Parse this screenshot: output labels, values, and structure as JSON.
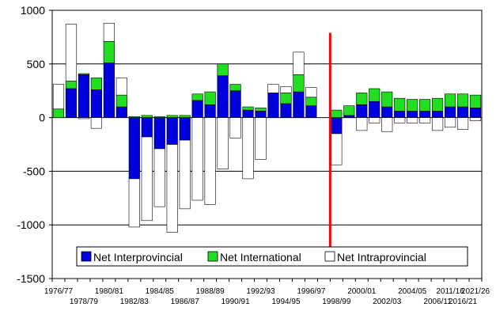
{
  "colors": {
    "interprovincial": "#0000dd",
    "international": "#22dd22",
    "intraprovincial": "#ffffff",
    "marker": "#ff0000",
    "grid": "#000000"
  },
  "chart_data": {
    "type": "bar",
    "stacked": true,
    "ylim": [
      -1500,
      1000
    ],
    "yticks": [
      1000,
      500,
      0,
      -500,
      -1000,
      -1500
    ],
    "ytick_labels": [
      "1000",
      "500",
      "0",
      "-500",
      "-1000",
      "-1500"
    ],
    "grid": "horizontal",
    "legend_position": "bottom-inside",
    "title": "",
    "xlabel": "",
    "ylabel": "",
    "x_range": [
      "1976/77",
      "2021/26"
    ],
    "x_tick_labels_upper": [
      "1976/77",
      "1980/81",
      "1984/85",
      "1988/89",
      "1992/93",
      "1996/97",
      "2000/01",
      "2004/05",
      "2011/16",
      "2021/26"
    ],
    "x_tick_labels_lower": [
      "1978/79",
      "1982/83",
      "1986/87",
      "1990/91",
      "1994/95",
      "1998/99",
      "2002/03",
      "2006/11",
      "2016/21"
    ],
    "vertical_marker": {
      "between": [
        "1997/98",
        "1998/99"
      ],
      "color": "#ff0000"
    },
    "categories": [
      "1976/77",
      "1977/78",
      "1978/79",
      "1979/80",
      "1980/81",
      "1981/82",
      "1982/83",
      "1983/84",
      "1984/85",
      "1985/86",
      "1986/87",
      "1987/88",
      "1988/89",
      "1989/90",
      "1990/91",
      "1991/92",
      "1992/93",
      "1993/94",
      "1994/95",
      "1995/96",
      "1996/97",
      "1997/98",
      "1998/99",
      "1999/00",
      "2000/01",
      "2001/02",
      "2002/03",
      "2003/04",
      "2004/05",
      "2005/06",
      "2006/11",
      "2011/16",
      "2016/21",
      "2021/26"
    ],
    "series": [
      {
        "name": "Net Interprovincial",
        "values": [
          0,
          270,
          400,
          260,
          510,
          100,
          -570,
          -180,
          -290,
          -250,
          -210,
          160,
          120,
          390,
          250,
          70,
          60,
          230,
          130,
          240,
          110,
          null,
          -150,
          20,
          120,
          150,
          100,
          60,
          60,
          60,
          60,
          100,
          100,
          90
        ]
      },
      {
        "name": "Net International",
        "values": [
          80,
          70,
          10,
          110,
          200,
          110,
          10,
          20,
          10,
          20,
          20,
          60,
          120,
          110,
          60,
          30,
          30,
          0,
          100,
          160,
          80,
          null,
          70,
          90,
          110,
          120,
          140,
          120,
          110,
          110,
          120,
          120,
          120,
          120
        ]
      },
      {
        "name": "Net Intraprovincial",
        "values": [
          230,
          530,
          -10,
          -100,
          170,
          160,
          -450,
          -780,
          -540,
          -820,
          -640,
          -770,
          -810,
          -480,
          -190,
          -570,
          -390,
          80,
          60,
          210,
          90,
          null,
          -290,
          0,
          -120,
          -50,
          -130,
          -50,
          -50,
          -50,
          -120,
          -90,
          -110,
          -30
        ]
      }
    ]
  }
}
